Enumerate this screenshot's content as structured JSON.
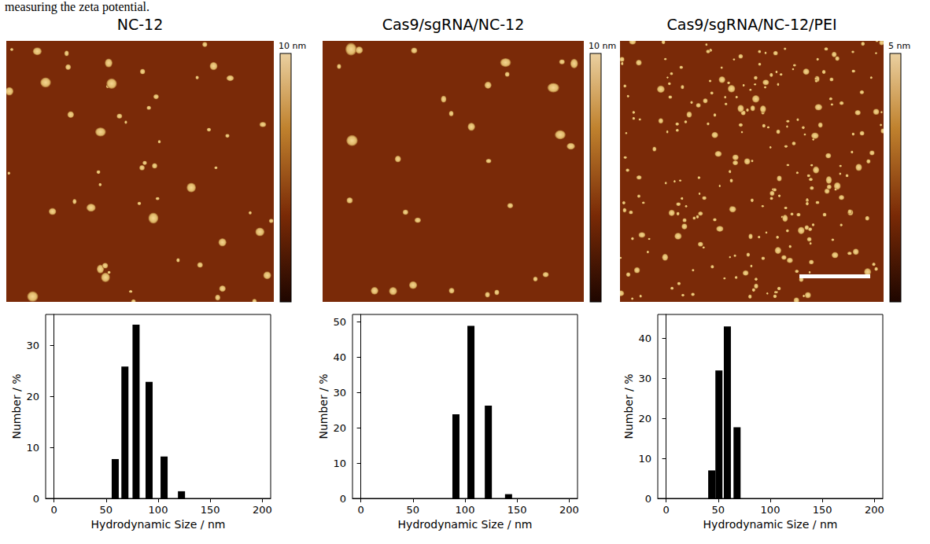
{
  "caption": "measuring the zeta potential.",
  "panels": [
    {
      "title": "NC-12",
      "colorbar_label": "10 nm"
    },
    {
      "title": "Cas9/sgRNA/NC-12",
      "colorbar_label": "10 nm"
    },
    {
      "title": "Cas9/sgRNA/NC-12/PEI",
      "colorbar_label": "5 nm"
    }
  ],
  "chart_data": [
    {
      "type": "bar",
      "x_label": "Hydrodynamic Size / nm",
      "y_label": "Number / %",
      "x": [
        58.8,
        68.1,
        78.8,
        91.3,
        105.7,
        122.4
      ],
      "values": [
        7.7,
        25.8,
        34,
        22.8,
        8.2,
        1.4
      ],
      "color": "#000000",
      "xlim": [
        -8,
        208
      ],
      "xticks": [
        0,
        50,
        100,
        150,
        200
      ],
      "ylim": [
        0,
        36
      ],
      "yticks": [
        0,
        10,
        20,
        30
      ],
      "grid": false
    },
    {
      "type": "bar",
      "x_label": "Hydrodynamic Size / nm",
      "y_label": "Number / %",
      "x": [
        91.3,
        105.7,
        122.4,
        141.8
      ],
      "values": [
        23.8,
        48.8,
        26.2,
        1.2
      ],
      "color": "#000000",
      "xlim": [
        -8,
        208
      ],
      "xticks": [
        0,
        50,
        100,
        150,
        200
      ],
      "ylim": [
        0,
        52
      ],
      "yticks": [
        0,
        10,
        20,
        30,
        40,
        50
      ],
      "grid": false
    },
    {
      "type": "bar",
      "x_label": "Hydrodynamic Size / nm",
      "y_label": "Number / %",
      "x": [
        43.8,
        50.7,
        58.8,
        68.1
      ],
      "values": [
        7,
        32,
        43,
        17.8
      ],
      "color": "#000000",
      "xlim": [
        -8,
        208
      ],
      "xticks": [
        0,
        50,
        100,
        150,
        200
      ],
      "ylim": [
        0,
        46
      ],
      "yticks": [
        0,
        10,
        20,
        30,
        40
      ],
      "grid": false
    }
  ]
}
